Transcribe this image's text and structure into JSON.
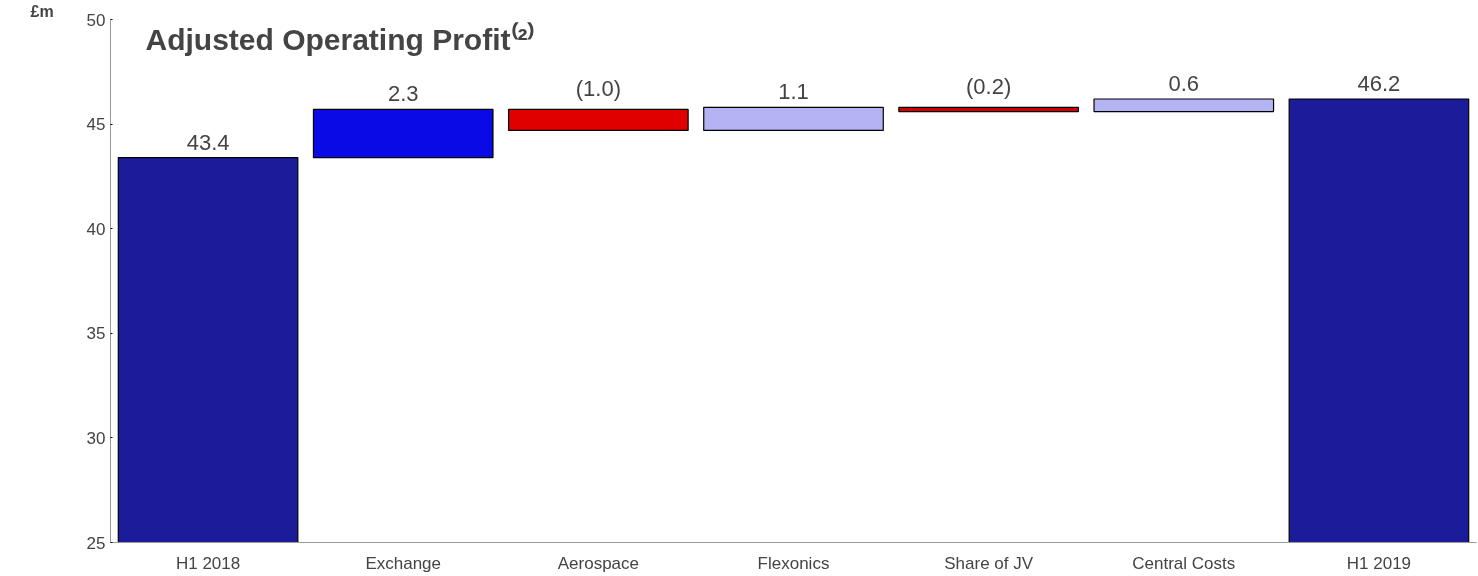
{
  "chart_data": {
    "type": "bar",
    "title": "Adjusted Operating Profit⁽²⁾",
    "ylabel": "£m",
    "categories": [
      "H1 2018",
      "Exchange",
      "Aerospace",
      "Flexonics",
      "Share of JV",
      "Central Costs",
      "H1 2019"
    ],
    "values": [
      43.4,
      2.3,
      -1.0,
      1.1,
      -0.2,
      0.6,
      46.2
    ],
    "base": [
      null,
      43.4,
      45.7,
      44.7,
      45.8,
      45.6,
      null
    ],
    "colors": [
      "#1c1c9a",
      "#0a0ae6",
      "#e00000",
      "#b4b4f4",
      "#d00000",
      "#b4b4f4",
      "#1c1c9a"
    ],
    "value_labels": [
      "43.4",
      "2.3",
      "(1.0)",
      "1.1",
      "(0.2)",
      "0.6",
      "46.2"
    ],
    "ylim": [
      25,
      50
    ],
    "yticks": [
      25,
      30,
      35,
      40,
      45,
      50
    ],
    "grid": false
  }
}
